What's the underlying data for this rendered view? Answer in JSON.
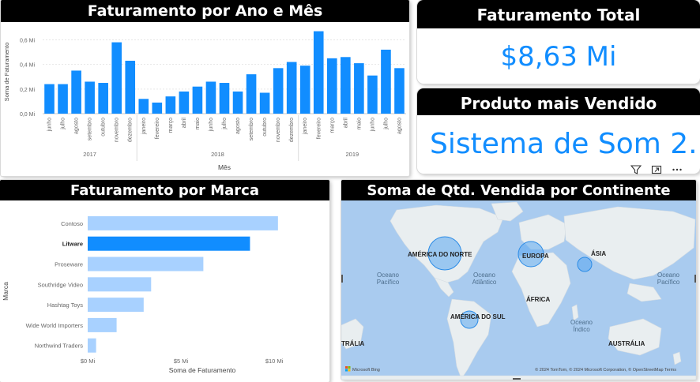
{
  "revenue_chart": {
    "title": "Faturamento por Ano e Mês",
    "chart_data": {
      "type": "bar",
      "title": "Faturamento por Ano e Mês",
      "xlabel": "Mês",
      "ylabel": "Soma de Faturamento",
      "ylim": [
        0,
        0.68
      ],
      "y_ticks": [
        "0,0 Mi",
        "0,2 Mi",
        "0,4 Mi",
        "0,6 Mi"
      ],
      "color": "#118DFF",
      "grid": true,
      "years": [
        "2017",
        "2018",
        "2019"
      ],
      "categories": [
        "junho",
        "julho",
        "agosto",
        "setembro",
        "outubro",
        "novembro",
        "dezembro",
        "janeiro",
        "fevereiro",
        "março",
        "abril",
        "maio",
        "junho",
        "julho",
        "agosto",
        "setembro",
        "outubro",
        "novembro",
        "dezembro",
        "janeiro",
        "fevereiro",
        "março",
        "abril",
        "maio",
        "junho",
        "julho",
        "agosto"
      ],
      "values": [
        0.24,
        0.24,
        0.35,
        0.26,
        0.25,
        0.58,
        0.43,
        0.12,
        0.09,
        0.14,
        0.18,
        0.22,
        0.26,
        0.25,
        0.18,
        0.32,
        0.17,
        0.37,
        0.42,
        0.39,
        0.67,
        0.45,
        0.46,
        0.41,
        0.31,
        0.52,
        0.37
      ]
    }
  },
  "total_card": {
    "title": "Faturamento Total",
    "value": "$8,63 Mi"
  },
  "product_card": {
    "title": "Produto mais Vendido",
    "value": "Sistema de Som 2...."
  },
  "brand_chart": {
    "title": "Faturamento por Marca",
    "chart_data": {
      "type": "bar",
      "orientation": "horizontal",
      "title": "Faturamento por Marca",
      "xlabel": "Soma de Faturamento",
      "ylabel": "Marca",
      "xlim": [
        0,
        10.8
      ],
      "x_ticks": [
        "$0 Mi",
        "$5 Mi",
        "$10 Mi"
      ],
      "categories": [
        "Contoso",
        "Litware",
        "Proseware",
        "Southridge Video",
        "Hashtag Toys",
        "Wide World Importers",
        "Northwind Traders"
      ],
      "values": [
        10.2,
        8.7,
        6.2,
        3.4,
        3.0,
        1.55,
        0.45
      ],
      "highlighted": "Litware",
      "color": "#118DFF",
      "faded_color": "#A8D1FF"
    }
  },
  "map": {
    "title": "Soma de Qtd. Vendida por Continente",
    "ocean_color": "#A9CBEF",
    "land_color": "#E9EEF0",
    "bubble_color": "#5AA8F0",
    "continents": [
      {
        "label": "AMÉRICA DO NORTE"
      },
      {
        "label": "EUROPA"
      },
      {
        "label": "ÁSIA"
      },
      {
        "label": "ÁFRICA"
      },
      {
        "label": "AMÉRICA DO SUL"
      },
      {
        "label": "AUSTRÁLIA"
      },
      {
        "label": "TRÁLIA"
      }
    ],
    "ocean_labels": [
      {
        "line1": "Oceano",
        "line2": "Pacífico"
      },
      {
        "line1": "Oceano",
        "line2": "Atlântico"
      },
      {
        "line1": "Oceano",
        "line2": "Índico"
      },
      {
        "line1": "Oceano",
        "line2": "Pacífico"
      }
    ],
    "logo": "Microsoft Bing",
    "attribution": "© 2024 TomTom, © 2024 Microsoft Corporation, © OpenStreetMap  Terms"
  }
}
